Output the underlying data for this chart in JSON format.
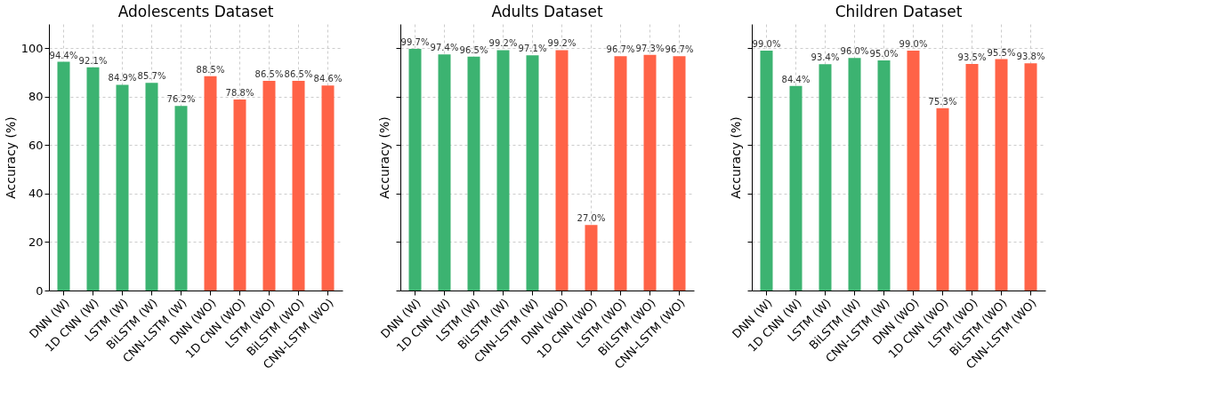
{
  "chart_data": [
    {
      "type": "bar",
      "title": "Adolescents Dataset",
      "ylabel": "Accuracy (%)",
      "categories": [
        "DNN (W)",
        "1D CNN (W)",
        "LSTM (W)",
        "BiLSTM (W)",
        "CNN-LSTM (W)",
        "DNN (WO)",
        "1D CNN (WO)",
        "LSTM (WO)",
        "BiLSTM (WO)",
        "CNN-LSTM (WO)"
      ],
      "values": [
        94.4,
        92.1,
        84.9,
        85.7,
        76.2,
        88.5,
        78.8,
        86.5,
        86.5,
        84.6
      ],
      "value_labels": [
        "94.4%",
        "92.1%",
        "84.9%",
        "85.7%",
        "76.2%",
        "88.5%",
        "78.8%",
        "86.5%",
        "86.5%",
        "84.6%"
      ],
      "colors": [
        "#3cb371",
        "#3cb371",
        "#3cb371",
        "#3cb371",
        "#3cb371",
        "#ff6347",
        "#ff6347",
        "#ff6347",
        "#ff6347",
        "#ff6347"
      ],
      "ylim": [
        0,
        110
      ],
      "yticks": [
        0,
        20,
        40,
        60,
        80,
        100
      ],
      "grid": true
    },
    {
      "type": "bar",
      "title": "Adults Dataset",
      "ylabel": "Accuracy (%)",
      "categories": [
        "DNN (W)",
        "1D CNN (W)",
        "LSTM (W)",
        "BiLSTM (W)",
        "CNN-LSTM (W)",
        "DNN (WO)",
        "1D CNN (WO)",
        "LSTM (WO)",
        "BiLSTM (WO)",
        "CNN-LSTM (WO)"
      ],
      "values": [
        99.7,
        97.4,
        96.5,
        99.2,
        97.1,
        99.2,
        27.0,
        96.7,
        97.3,
        96.7
      ],
      "value_labels": [
        "99.7%",
        "97.4%",
        "96.5%",
        "99.2%",
        "97.1%",
        "99.2%",
        "27.0%",
        "96.7%",
        "97.3%",
        "96.7%"
      ],
      "colors": [
        "#3cb371",
        "#3cb371",
        "#3cb371",
        "#3cb371",
        "#3cb371",
        "#ff6347",
        "#ff6347",
        "#ff6347",
        "#ff6347",
        "#ff6347"
      ],
      "ylim": [
        0,
        110
      ],
      "yticks": [
        {
          "value": 0,
          "label": null
        },
        {
          "value": 20,
          "label": null
        },
        {
          "value": 40,
          "label": null
        },
        {
          "value": 60,
          "label": null
        },
        {
          "value": 80,
          "label": null
        },
        {
          "value": 100,
          "label": null
        }
      ],
      "grid": true,
      "tick_labels": "x"
    },
    {
      "type": "bar",
      "title": "Children Dataset",
      "ylabel": "Accuracy (%)",
      "categories": [
        "DNN (W)",
        "1D CNN (W)",
        "LSTM (W)",
        "BiLSTM (W)",
        "CNN-LSTM (W)",
        "DNN (WO)",
        "1D CNN (WO)",
        "LSTM (WO)",
        "BiLSTM (WO)",
        "CNN-LSTM (WO)"
      ],
      "values": [
        99.0,
        84.4,
        93.4,
        96.0,
        95.0,
        99.0,
        75.3,
        93.5,
        95.5,
        93.8
      ],
      "value_labels": [
        "99.0%",
        "84.4%",
        "93.4%",
        "96.0%",
        "95.0%",
        "99.0%",
        "75.3%",
        "93.5%",
        "95.5%",
        "93.8%"
      ],
      "colors": [
        "#3cb371",
        "#3cb371",
        "#3cb371",
        "#3cb371",
        "#3cb371",
        "#ff6347",
        "#ff6347",
        "#ff6347",
        "#ff6347",
        "#ff6347"
      ],
      "ylim": [
        0,
        110
      ],
      "yticks": [
        {
          "value": 0,
          "label": null
        },
        {
          "value": 20,
          "label": null
        },
        {
          "value": 40,
          "label": null
        },
        {
          "value": 60,
          "label": null
        },
        {
          "value": 80,
          "label": null
        },
        {
          "value": 100,
          "label": null
        }
      ],
      "grid": true,
      "tick_labels": "x"
    }
  ]
}
